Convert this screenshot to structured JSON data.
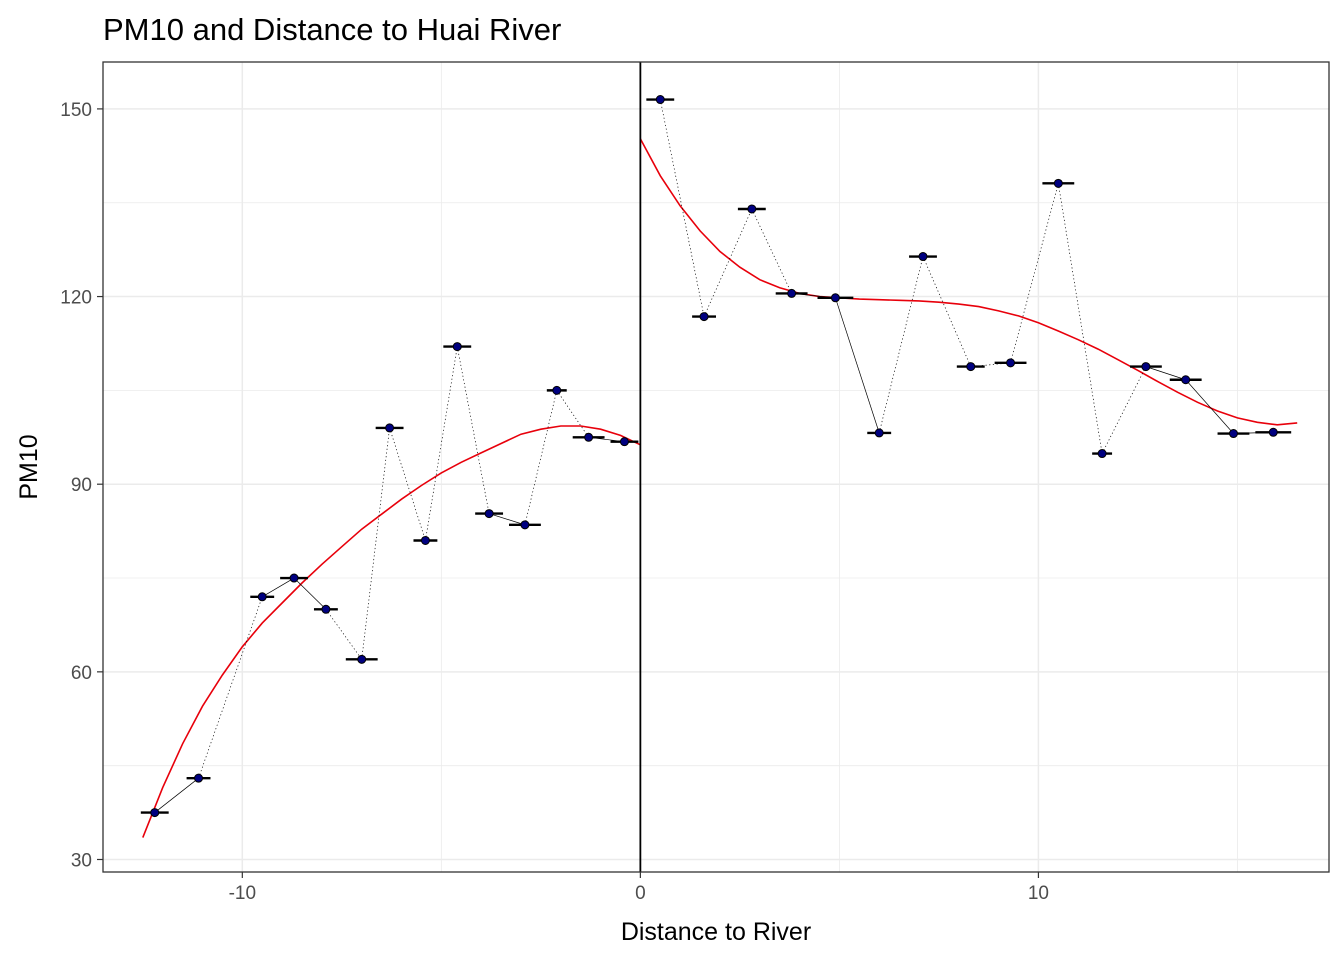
{
  "chart_data": {
    "type": "scatter",
    "title": "PM10 and Distance to Huai River",
    "xlabel": "Distance to River",
    "ylabel": "PM10",
    "xlim": [
      -13.5,
      17.3
    ],
    "ylim": [
      28,
      157.5
    ],
    "x_ticks": [
      -10,
      0,
      10
    ],
    "y_ticks": [
      30,
      60,
      90,
      120,
      150
    ],
    "x_minor_ticks": [
      -15,
      -5,
      5,
      15
    ],
    "y_minor_ticks": [
      45,
      75,
      105,
      135
    ],
    "grid": true,
    "cutoff_x": 0,
    "colors": {
      "point_fill": "#000080",
      "fit_line": "#e8000b",
      "connector": "#000000",
      "grid": "#ebebeb",
      "panel_border": "#333333"
    },
    "points": [
      {
        "x": -12.2,
        "y": 37.5,
        "width": 0.7
      },
      {
        "x": -11.1,
        "y": 43,
        "width": 0.6
      },
      {
        "x": -9.5,
        "y": 72,
        "width": 0.6
      },
      {
        "x": -8.7,
        "y": 75,
        "width": 0.7
      },
      {
        "x": -7.9,
        "y": 70,
        "width": 0.6
      },
      {
        "x": -7.0,
        "y": 62,
        "width": 0.8
      },
      {
        "x": -6.3,
        "y": 99,
        "width": 0.7
      },
      {
        "x": -5.4,
        "y": 81,
        "width": 0.6
      },
      {
        "x": -4.6,
        "y": 112,
        "width": 0.7
      },
      {
        "x": -3.8,
        "y": 85.3,
        "width": 0.7
      },
      {
        "x": -2.9,
        "y": 83.5,
        "width": 0.8
      },
      {
        "x": -2.1,
        "y": 105,
        "width": 0.5
      },
      {
        "x": -1.3,
        "y": 97.5,
        "width": 0.8
      },
      {
        "x": -0.4,
        "y": 96.8,
        "width": 0.7
      },
      {
        "x": 0.5,
        "y": 151.5,
        "width": 0.7
      },
      {
        "x": 1.6,
        "y": 116.8,
        "width": 0.6
      },
      {
        "x": 2.8,
        "y": 134,
        "width": 0.7
      },
      {
        "x": 3.8,
        "y": 120.5,
        "width": 0.8
      },
      {
        "x": 4.9,
        "y": 119.8,
        "width": 0.9
      },
      {
        "x": 6.0,
        "y": 98.2,
        "width": 0.6
      },
      {
        "x": 7.1,
        "y": 126.4,
        "width": 0.7
      },
      {
        "x": 8.3,
        "y": 108.8,
        "width": 0.7
      },
      {
        "x": 9.3,
        "y": 109.4,
        "width": 0.8
      },
      {
        "x": 10.5,
        "y": 138.1,
        "width": 0.8
      },
      {
        "x": 11.6,
        "y": 94.9,
        "width": 0.5
      },
      {
        "x": 12.7,
        "y": 108.8,
        "width": 0.8
      },
      {
        "x": 13.7,
        "y": 106.7,
        "width": 0.8
      },
      {
        "x": 14.9,
        "y": 98.1,
        "width": 0.8
      },
      {
        "x": 15.9,
        "y": 98.3,
        "width": 0.9
      }
    ],
    "connector_styles": [
      "solid",
      "dotted",
      "solid",
      "solid",
      "dotted",
      "dotted",
      "dotted",
      "dotted",
      "dotted",
      "solid",
      "dotted",
      "dotted",
      "solid",
      "",
      "dotted",
      "dotted",
      "dotted",
      "solid",
      "solid",
      "dotted",
      "dotted",
      "dotted",
      "dotted",
      "dotted",
      "dotted",
      "solid",
      "solid",
      "solid"
    ],
    "fit_left": {
      "x": [
        -12.5,
        -12,
        -11.5,
        -11,
        -10.5,
        -10,
        -9.5,
        -9,
        -8.5,
        -8,
        -7.5,
        -7,
        -6.5,
        -6,
        -5.5,
        -5,
        -4.5,
        -4,
        -3.5,
        -3,
        -2.5,
        -2,
        -1.5,
        -1,
        -0.5,
        0
      ],
      "y": [
        33.5,
        41.5,
        48.5,
        54.5,
        59.5,
        64,
        67.8,
        71,
        74.2,
        77.2,
        80,
        82.8,
        85.2,
        87.6,
        89.8,
        91.8,
        93.5,
        95,
        96.5,
        98,
        98.8,
        99.3,
        99.3,
        98.8,
        97.8,
        96.3
      ]
    },
    "fit_right": {
      "x": [
        0,
        0.5,
        1,
        1.5,
        2,
        2.5,
        3,
        3.5,
        4,
        4.5,
        5,
        5.5,
        6,
        6.5,
        7,
        7.5,
        8,
        8.5,
        9,
        9.5,
        10,
        10.5,
        11,
        11.5,
        12,
        12.5,
        13,
        13.5,
        14,
        14.5,
        15,
        15.5,
        16,
        16.5
      ],
      "y": [
        145.2,
        139.3,
        134.5,
        130.5,
        127.2,
        124.7,
        122.7,
        121.4,
        120.5,
        120.0,
        119.8,
        119.6,
        119.5,
        119.4,
        119.3,
        119.1,
        118.8,
        118.4,
        117.7,
        116.9,
        115.8,
        114.5,
        113.1,
        111.6,
        109.9,
        108.2,
        106.4,
        104.7,
        103.1,
        101.7,
        100.6,
        99.9,
        99.5,
        99.8
      ]
    }
  }
}
